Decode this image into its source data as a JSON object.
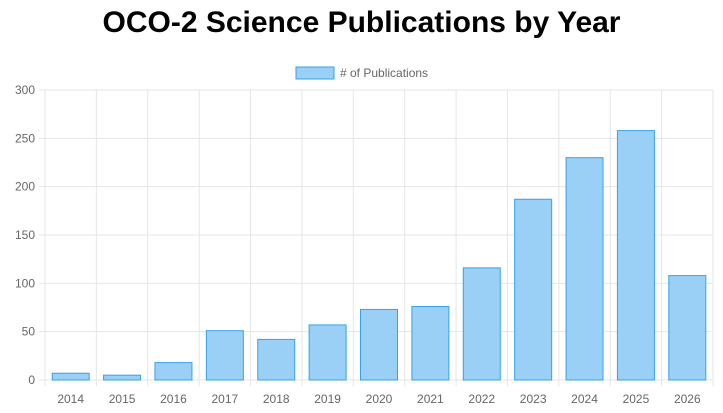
{
  "page": {
    "title": "OCO-2 Science Publications by Year"
  },
  "chart_data": {
    "type": "bar",
    "title": "OCO-2 Science Publications by Year",
    "categories": [
      "2014",
      "2015",
      "2016",
      "2017",
      "2018",
      "2019",
      "2020",
      "2021",
      "2022",
      "2023",
      "2024",
      "2025",
      "2026"
    ],
    "series": [
      {
        "name": "# of Publications",
        "values": [
          7,
          5,
          18,
          51,
          42,
          57,
          73,
          76,
          116,
          187,
          230,
          258,
          108
        ]
      }
    ],
    "ylim": [
      0,
      300
    ],
    "yticks": [
      0,
      50,
      100,
      150,
      200,
      250,
      300
    ],
    "grid": true,
    "legend": "top-center",
    "colors": {
      "bar_fill": "#9ad0f5",
      "bar_stroke": "#36a2eb",
      "grid": "#e6e6e6",
      "text": "#666666"
    }
  }
}
